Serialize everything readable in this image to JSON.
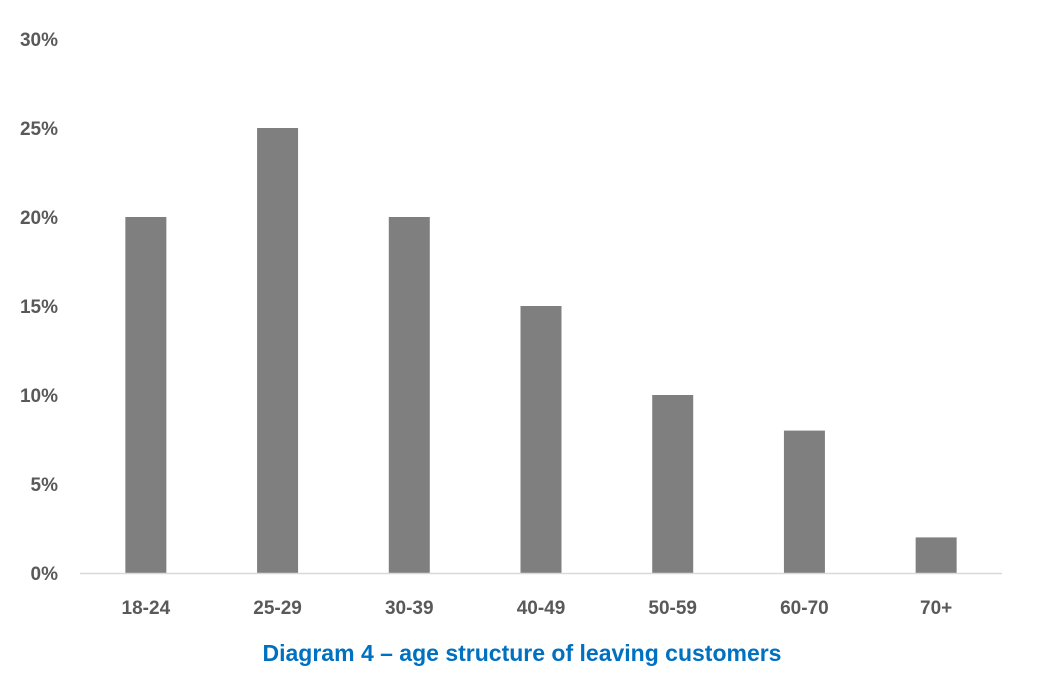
{
  "chart_data": {
    "type": "bar",
    "caption": "Diagram 4 – age structure of leaving customers",
    "categories": [
      "18-24",
      "25-29",
      "30-39",
      "40-49",
      "50-59",
      "60-70",
      "70+"
    ],
    "values": [
      20,
      25,
      20,
      15,
      10,
      8,
      2
    ],
    "value_unit": "%",
    "ylim": [
      0,
      30
    ],
    "yticks": [
      0,
      5,
      10,
      15,
      20,
      25,
      30
    ],
    "ytick_labels": [
      "0%",
      "5%",
      "10%",
      "15%",
      "20%",
      "25%",
      "30%"
    ],
    "grid": false,
    "legend": "none",
    "colors": {
      "bar": "#7f7f7f",
      "axis": "#d9d9d9",
      "tick_text": "#595959",
      "caption": "#0070c0"
    }
  }
}
